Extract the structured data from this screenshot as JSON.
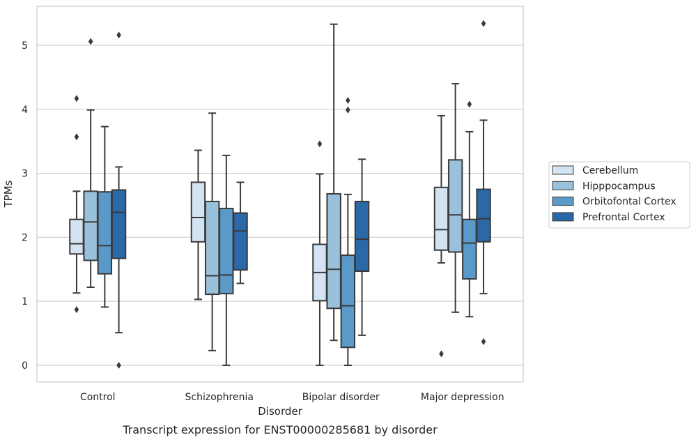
{
  "chart_data": {
    "type": "box",
    "caption": "Transcript expression for ENST00000285681 by disorder",
    "xlabel": "Disorder",
    "ylabel": "TPMs",
    "ylim": [
      -0.25,
      5.6
    ],
    "yticks": [
      0,
      1,
      2,
      3,
      4,
      5
    ],
    "grid": true,
    "legend_position": "right",
    "categories": [
      "Control",
      "Schizophrenia",
      "Bipolar disorder",
      "Major depression"
    ],
    "series": [
      {
        "name": "Cerebellum",
        "color": "#d4e3f2",
        "boxes": [
          {
            "whislo": 1.13,
            "q1": 1.74,
            "med": 1.9,
            "q3": 2.28,
            "whishi": 2.72,
            "fliers": [
              4.17,
              3.57,
              0.87
            ]
          },
          {
            "whislo": 1.03,
            "q1": 1.93,
            "med": 2.31,
            "q3": 2.86,
            "whishi": 3.36,
            "fliers": []
          },
          {
            "whislo": 0.0,
            "q1": 1.01,
            "med": 1.45,
            "q3": 1.89,
            "whishi": 2.99,
            "fliers": [
              3.46
            ]
          },
          {
            "whislo": 1.6,
            "q1": 1.8,
            "med": 2.12,
            "q3": 2.78,
            "whishi": 3.9,
            "fliers": [
              0.18
            ]
          }
        ]
      },
      {
        "name": "Hipppocampus",
        "color": "#99c1db",
        "boxes": [
          {
            "whislo": 1.22,
            "q1": 1.64,
            "med": 2.24,
            "q3": 2.72,
            "whishi": 3.99,
            "fliers": [
              5.06
            ]
          },
          {
            "whislo": 0.23,
            "q1": 1.11,
            "med": 1.4,
            "q3": 2.56,
            "whishi": 3.94,
            "fliers": []
          },
          {
            "whislo": 0.39,
            "q1": 0.89,
            "med": 1.5,
            "q3": 2.68,
            "whishi": 5.33,
            "fliers": []
          },
          {
            "whislo": 0.83,
            "q1": 1.77,
            "med": 2.35,
            "q3": 3.21,
            "whishi": 4.4,
            "fliers": []
          }
        ]
      },
      {
        "name": "Orbitofontal Cortex",
        "color": "#5b9ac8",
        "boxes": [
          {
            "whislo": 0.91,
            "q1": 1.43,
            "med": 1.87,
            "q3": 2.71,
            "whishi": 3.73,
            "fliers": []
          },
          {
            "whislo": 0.0,
            "q1": 1.12,
            "med": 1.41,
            "q3": 2.45,
            "whishi": 3.28,
            "fliers": []
          },
          {
            "whislo": 0.0,
            "q1": 0.28,
            "med": 0.93,
            "q3": 1.72,
            "whishi": 2.67,
            "fliers": [
              4.14,
              3.99
            ]
          },
          {
            "whislo": 0.76,
            "q1": 1.35,
            "med": 1.91,
            "q3": 2.28,
            "whishi": 3.65,
            "fliers": [
              4.08
            ]
          }
        ]
      },
      {
        "name": "Prefrontal Cortex",
        "color": "#2a68a8",
        "boxes": [
          {
            "whislo": 0.51,
            "q1": 1.67,
            "med": 2.39,
            "q3": 2.74,
            "whishi": 3.1,
            "fliers": [
              5.16,
              0.0
            ]
          },
          {
            "whislo": 1.28,
            "q1": 1.49,
            "med": 2.1,
            "q3": 2.38,
            "whishi": 2.86,
            "fliers": []
          },
          {
            "whislo": 0.47,
            "q1": 1.47,
            "med": 1.97,
            "q3": 2.56,
            "whishi": 3.22,
            "fliers": []
          },
          {
            "whislo": 1.12,
            "q1": 1.93,
            "med": 2.29,
            "q3": 2.75,
            "whishi": 3.83,
            "fliers": [
              0.37,
              5.34
            ]
          }
        ]
      }
    ]
  }
}
